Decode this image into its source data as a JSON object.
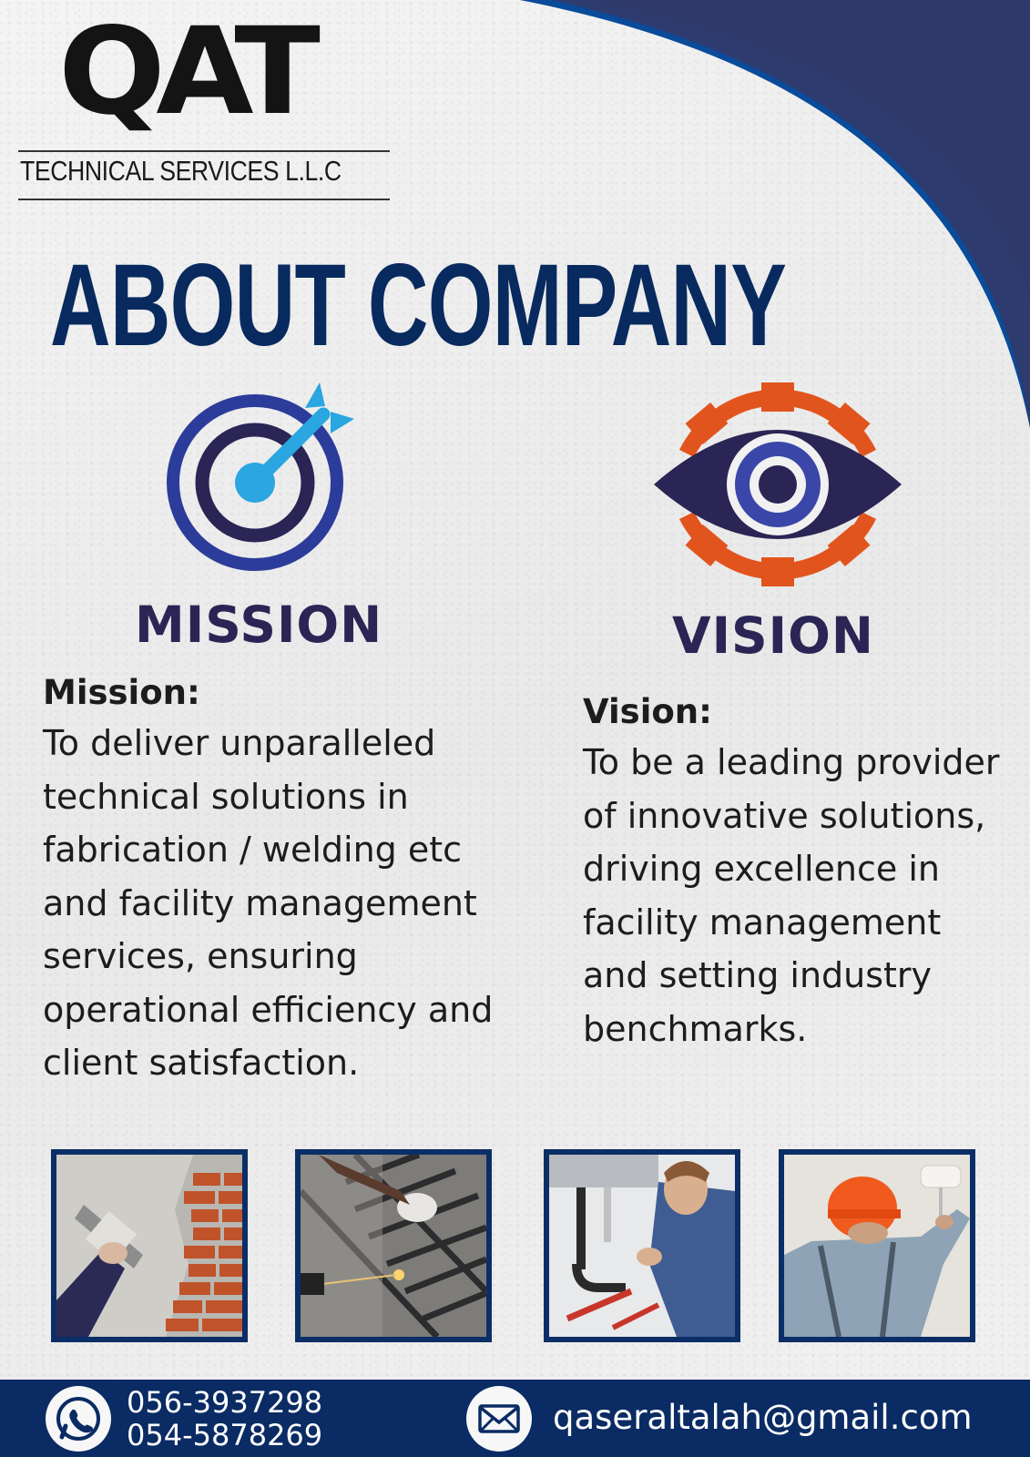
{
  "logo": {
    "mark": "QAT",
    "subtitle": "TECHNICAL SERVICES L.L.C"
  },
  "title": "ABOUT COMPANY",
  "mission": {
    "icon": "target-arrow-icon",
    "label": "MISSION",
    "heading": "Mission:",
    "body": "To deliver unparalleled technical solutions in fabrication / welding etc and facility management services, ensuring operational efficiency and client satisfaction."
  },
  "vision": {
    "icon": "eye-gear-icon",
    "label": "VISION",
    "heading": "Vision:",
    "body": "To be a leading provider of innovative solutions, driving excellence in facility management and setting industry benchmarks."
  },
  "photos": [
    {
      "icon": "plastering-photo"
    },
    {
      "icon": "welding-photo"
    },
    {
      "icon": "plumbing-photo"
    },
    {
      "icon": "painting-photo"
    }
  ],
  "footer": {
    "phone_icon": "whatsapp-icon",
    "phone_1": "056-3937298",
    "phone_2": "054-5878269",
    "mail_icon": "envelope-icon",
    "email": "qaseraltalah@gmail.com"
  },
  "colors": {
    "navy": "#082a5e",
    "royal_blue": "#0a4b9a",
    "indigo": "#2a2554",
    "orange": "#e2541e",
    "sky_blue": "#2aa6e0",
    "footer": "#0a2b63"
  }
}
